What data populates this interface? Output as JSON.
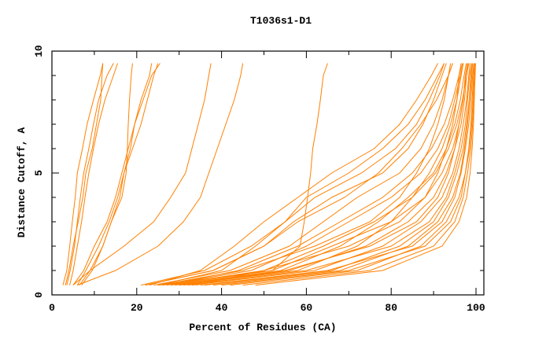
{
  "chart_data": {
    "type": "line",
    "title": "T1036s1-D1",
    "xlabel": "Percent of Residues (CA)",
    "ylabel": "Distance Cutoff, A",
    "xlim": [
      0,
      102
    ],
    "ylim": [
      0,
      10
    ],
    "x_ticks": [
      0,
      20,
      40,
      60,
      80,
      100
    ],
    "x_tick_labels": [
      "0",
      "20",
      "40",
      "60",
      "80",
      "100"
    ],
    "y_ticks": [
      0,
      5,
      10
    ],
    "y_tick_labels": [
      "0",
      "5",
      "10"
    ],
    "grid": false,
    "legend": "none",
    "line_color": "#ff8000",
    "y_levels": [
      0.4,
      1,
      2,
      3,
      4,
      5,
      6,
      7,
      8,
      9,
      9.5
    ],
    "series_x_at_y_levels": [
      [
        2.6,
        3.5,
        4.2,
        4.8,
        5.5,
        6,
        7.2,
        8.3,
        9.8,
        11.4,
        12
      ],
      [
        3.5,
        4.3,
        5.3,
        6,
        6.7,
        7.5,
        8.7,
        9.8,
        11,
        13,
        14.5
      ],
      [
        4.2,
        5,
        6,
        7,
        7.8,
        8.7,
        9.8,
        11,
        12.5,
        14.5,
        15.5
      ],
      [
        3.2,
        4,
        5,
        6.2,
        7.3,
        8,
        9.5,
        10.5,
        11.5,
        11.8,
        12
      ],
      [
        6,
        8,
        11,
        13.5,
        15.5,
        17,
        18.5,
        19.5,
        21,
        23,
        23.5
      ],
      [
        5,
        7.5,
        10,
        13,
        15,
        16.5,
        18,
        19.5,
        21.5,
        23.5,
        25.5
      ],
      [
        6.5,
        9,
        12,
        14,
        16.5,
        17.5,
        17.8,
        18,
        18.3,
        18.7,
        19
      ],
      [
        7,
        9.5,
        12,
        14,
        16,
        17,
        19,
        21,
        22.5,
        24,
        25
      ],
      [
        5,
        9,
        17,
        24,
        28,
        31.5,
        33,
        34.5,
        36,
        37,
        37.5
      ],
      [
        6,
        15,
        25,
        31,
        35,
        37,
        39,
        41,
        43,
        44.5,
        45
      ],
      [
        25,
        52,
        58.5,
        59.5,
        60.3,
        61,
        61.5,
        62.5,
        63.3,
        64,
        65
      ],
      [
        25,
        45,
        62,
        75,
        82,
        86,
        89,
        91,
        92.5,
        93.5,
        94
      ],
      [
        27,
        50,
        70,
        82,
        88,
        91,
        93,
        94.5,
        95.5,
        96,
        96.5
      ],
      [
        30,
        55,
        75,
        86,
        91,
        93.5,
        95,
        96,
        97,
        97.5,
        98
      ],
      [
        32,
        60,
        80,
        89,
        93,
        95,
        96.5,
        97.5,
        98,
        98.5,
        99
      ],
      [
        35,
        65,
        85,
        92,
        95,
        96.5,
        97.5,
        98.3,
        98.8,
        99.2,
        99.5
      ],
      [
        40,
        70,
        88,
        94,
        96.5,
        97.5,
        98.5,
        99,
        99.3,
        99.5,
        99.6
      ],
      [
        45,
        75,
        90,
        95,
        97,
        98,
        98.8,
        99.2,
        99.5,
        99.7,
        99.8
      ],
      [
        28,
        52,
        66,
        80,
        88,
        92,
        94.5,
        96,
        97,
        97.5,
        98
      ],
      [
        26,
        47,
        60,
        70,
        80,
        87,
        91,
        93.5,
        95,
        96.3,
        97
      ],
      [
        24,
        42,
        56,
        64,
        72,
        82,
        87,
        90,
        92,
        93.5,
        94.5
      ],
      [
        22,
        38,
        50,
        57,
        66,
        78,
        84,
        87.5,
        90,
        92,
        93
      ],
      [
        25,
        40,
        48,
        55,
        62,
        73,
        81,
        86,
        89,
        91.5,
        92.5
      ],
      [
        23,
        35,
        43,
        50,
        58,
        66,
        76,
        82,
        86,
        89.5,
        91
      ],
      [
        30,
        58,
        72,
        80,
        85,
        89,
        92,
        94,
        95.5,
        96.5,
        97
      ],
      [
        33,
        62,
        78,
        87,
        92,
        94.5,
        96,
        97,
        97.8,
        98.3,
        98.6
      ],
      [
        38,
        68,
        84,
        91,
        94.5,
        96.3,
        97.3,
        98,
        98.5,
        99,
        99.2
      ],
      [
        42,
        72,
        87,
        93,
        96,
        97.5,
        98.3,
        98.8,
        99.1,
        99.4,
        99.6
      ],
      [
        29,
        54,
        68,
        77,
        84,
        90,
        93,
        95,
        96.3,
        97.2,
        97.7
      ],
      [
        21,
        36,
        47,
        55,
        60,
        70,
        78,
        84,
        88,
        91,
        92.5
      ],
      [
        22,
        38,
        50,
        58,
        69,
        77,
        82.5,
        87,
        90.7,
        93.5,
        94.5
      ],
      [
        31,
        56,
        74,
        84,
        90,
        93,
        95,
        96.5,
        97.3,
        97.8,
        98.2
      ],
      [
        36,
        66,
        82,
        90,
        93.5,
        95.5,
        97,
        97.8,
        98.4,
        98.8,
        99
      ],
      [
        48,
        78,
        92,
        96,
        97.8,
        98.6,
        99.1,
        99.4,
        99.6,
        99.8,
        99.9
      ],
      [
        34,
        50,
        64,
        76,
        85,
        90.5,
        93.5,
        95.5,
        96.8,
        97.8,
        98.3
      ],
      [
        27,
        44,
        58,
        68,
        78,
        85,
        89.5,
        92.5,
        94.5,
        96,
        96.8
      ]
    ]
  }
}
